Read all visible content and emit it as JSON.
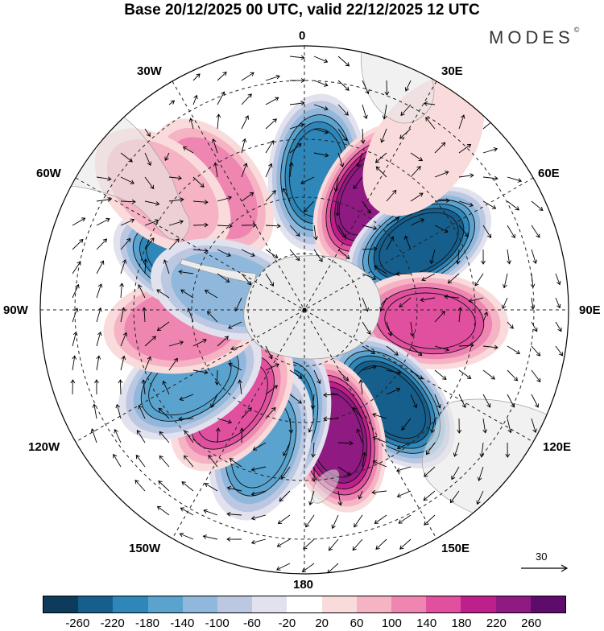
{
  "title": "Base 20/12/2025 00 UTC, valid 22/12/2025 12 UTC",
  "brand": "MODES",
  "brand_mark": "©",
  "longitude_labels": {
    "top": "0",
    "w30": "30W",
    "e30": "30E",
    "w60": "60W",
    "e60": "60E",
    "w90": "90W",
    "e90": "90E",
    "w120": "120W",
    "e120": "120E",
    "w150": "150W",
    "e150": "150E",
    "bottom": "180"
  },
  "reference_vector": {
    "label": "30",
    "icon": "arrow-right-icon"
  },
  "colorbar": {
    "colors": [
      "#0d3b5b",
      "#165f8d",
      "#2f86b8",
      "#5aa3cf",
      "#8fb8dc",
      "#bcc8e2",
      "#e2e2ef",
      "#ffffff",
      "#fadbdb",
      "#f5b3c3",
      "#ee86b1",
      "#e0509f",
      "#bf1f8b",
      "#8e1a82",
      "#5d0c6b"
    ],
    "ticks": [
      "-260",
      "-220",
      "-180",
      "-140",
      "-100",
      "-60",
      "-20",
      "20",
      "60",
      "100",
      "140",
      "180",
      "220",
      "260"
    ]
  },
  "anomaly_centers": [
    {
      "lon": 5,
      "lat": -43,
      "value": -200
    },
    {
      "lon": 30,
      "lat": -45,
      "value": 250
    },
    {
      "lon": 60,
      "lat": -45,
      "value": -230
    },
    {
      "lon": 95,
      "lat": -47,
      "value": 160
    },
    {
      "lon": 137,
      "lat": -47,
      "value": -230
    },
    {
      "lon": 166,
      "lat": -46,
      "value": 230
    },
    {
      "lon": -168,
      "lat": -52,
      "value": -180
    },
    {
      "lon": -162,
      "lat": -42,
      "value": -160
    },
    {
      "lon": -142,
      "lat": -50,
      "value": 160
    },
    {
      "lon": -122,
      "lat": -44,
      "value": -160
    },
    {
      "lon": -97,
      "lat": -48,
      "value": 120
    },
    {
      "lon": -67,
      "lat": -47,
      "value": -200
    },
    {
      "lon": -37,
      "lat": -38,
      "value": 110
    },
    {
      "lon": -50,
      "lat": -27,
      "value": 60
    },
    {
      "lon": 36,
      "lat": -21,
      "value": 40
    },
    {
      "lon": -75,
      "lat": -63,
      "value": -100
    }
  ]
}
